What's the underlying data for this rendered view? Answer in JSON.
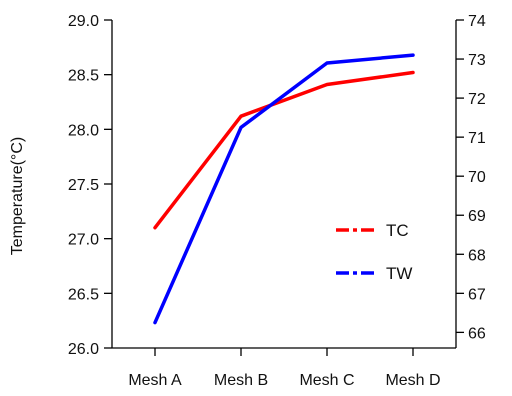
{
  "chart_data": {
    "type": "line",
    "categories": [
      "Mesh A",
      "Mesh B",
      "Mesh C",
      "Mesh D"
    ],
    "ylabel": "Temperature(°C)",
    "y_left": {
      "range": [
        26.0,
        29.0
      ],
      "ticks": [
        "26.0",
        "26.5",
        "27.0",
        "27.5",
        "28.0",
        "28.5",
        "29.0"
      ]
    },
    "y_right": {
      "range": [
        65.6,
        74
      ],
      "ticks": [
        "66",
        "67",
        "68",
        "69",
        "70",
        "71",
        "72",
        "73",
        "74"
      ]
    },
    "series": [
      {
        "name": "TC",
        "axis": "left",
        "color": "#ff0000",
        "values": [
          27.1,
          28.12,
          28.41,
          28.52
        ]
      },
      {
        "name": "TW",
        "axis": "right",
        "color": "#0000ff",
        "values": [
          66.25,
          71.25,
          72.9,
          73.1
        ]
      }
    ],
    "legend": {
      "placement": "center-right",
      "style": "dash-dot"
    },
    "grid": false
  }
}
